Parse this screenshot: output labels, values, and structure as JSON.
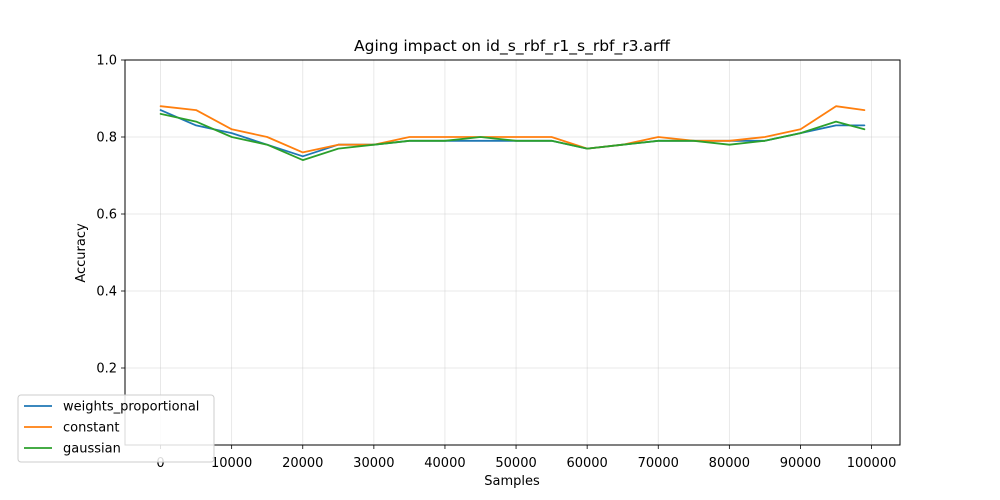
{
  "chart_data": {
    "type": "line",
    "title": "Aging impact on id_s_rbf_r1_s_rbf_r3.arff",
    "xlabel": "Samples",
    "ylabel": "Accuracy",
    "xlim": [
      -5000,
      104000
    ],
    "ylim": [
      0.0,
      1.0
    ],
    "x_ticks": [
      0,
      10000,
      20000,
      30000,
      40000,
      50000,
      60000,
      70000,
      80000,
      90000,
      100000
    ],
    "x_tick_labels": [
      "0",
      "10000",
      "20000",
      "30000",
      "40000",
      "50000",
      "60000",
      "70000",
      "80000",
      "90000",
      "100000"
    ],
    "y_ticks": [
      0.2,
      0.4,
      0.6,
      0.8,
      1.0
    ],
    "y_tick_labels": [
      "0.2",
      "0.4",
      "0.6",
      "0.8",
      "1.0"
    ],
    "grid": true,
    "legend_position": "lower-left",
    "x": [
      0,
      5000,
      10000,
      15000,
      20000,
      25000,
      30000,
      35000,
      40000,
      45000,
      50000,
      55000,
      60000,
      65000,
      70000,
      75000,
      80000,
      85000,
      90000,
      95000,
      99000
    ],
    "series": [
      {
        "name": "weights_proportional",
        "color": "#1f77b4",
        "values": [
          0.87,
          0.83,
          0.81,
          0.78,
          0.75,
          0.78,
          0.78,
          0.79,
          0.79,
          0.79,
          0.79,
          0.79,
          0.77,
          0.78,
          0.79,
          0.79,
          0.79,
          0.79,
          0.81,
          0.83,
          0.83
        ]
      },
      {
        "name": "constant",
        "color": "#ff7f0e",
        "values": [
          0.88,
          0.87,
          0.82,
          0.8,
          0.76,
          0.78,
          0.78,
          0.8,
          0.8,
          0.8,
          0.8,
          0.8,
          0.77,
          0.78,
          0.8,
          0.79,
          0.79,
          0.8,
          0.82,
          0.88,
          0.87
        ]
      },
      {
        "name": "gaussian",
        "color": "#2ca02c",
        "values": [
          0.86,
          0.84,
          0.8,
          0.78,
          0.74,
          0.77,
          0.78,
          0.79,
          0.79,
          0.8,
          0.79,
          0.79,
          0.77,
          0.78,
          0.79,
          0.79,
          0.78,
          0.79,
          0.81,
          0.84,
          0.82
        ]
      }
    ]
  }
}
